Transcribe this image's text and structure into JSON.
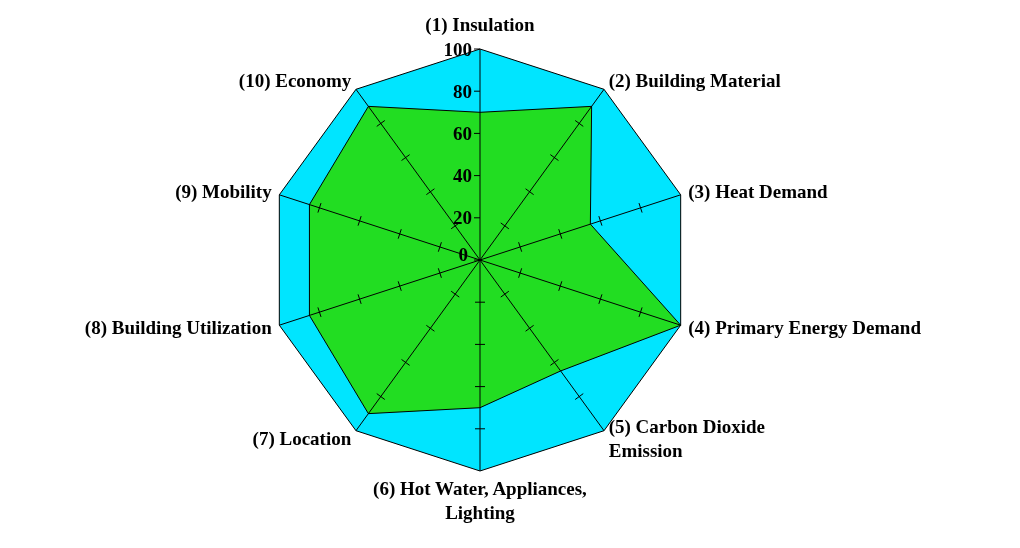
{
  "chart_data": {
    "type": "radar",
    "categories": [
      "(1) Insulation",
      "(2) Building Material",
      "(3) Heat Demand",
      "(4) Primary Energy Demand",
      "(5) Carbon Dioxide Emission",
      "(6) Hot Water, Appliances, Lighting",
      "(7) Location",
      "(8) Building Utilization",
      "(9) Mobility",
      "(10) Economy"
    ],
    "series": [
      {
        "color": "#22dd22",
        "values": [
          70,
          90,
          55,
          100,
          65,
          70,
          90,
          85,
          85,
          90
        ]
      }
    ],
    "ylim": [
      0,
      100
    ],
    "yticks": [
      0,
      20,
      40,
      60,
      80,
      100
    ]
  }
}
